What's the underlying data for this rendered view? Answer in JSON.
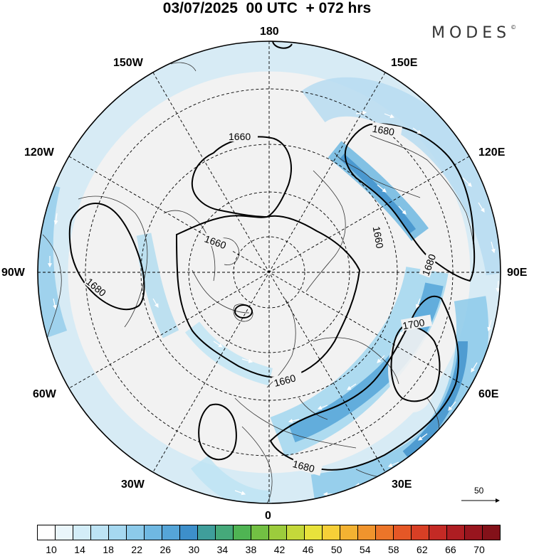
{
  "title": "03/07/2025  00 UTC  + 072 hrs",
  "brand": "MODES",
  "brand_mark": "©",
  "longitude_labels": {
    "lon_180": "180",
    "lon_150w": "150W",
    "lon_150e": "150E",
    "lon_120w": "120W",
    "lon_120e": "120E",
    "lon_90w": "90W",
    "lon_90e": "90E",
    "lon_60w": "60W",
    "lon_60e": "60E",
    "lon_30w": "30W",
    "lon_30e": "30E",
    "lon_0": "0"
  },
  "contour_labels": {
    "c1660_top": "1660",
    "c1680_ne": "1680",
    "c1660_center": "1660",
    "c1660_east": "1660",
    "c1680_east": "1680",
    "c1680_west": "1680",
    "c1700": "1700",
    "c1660_bottom": "1660",
    "c1680_bottom": "1680"
  },
  "reference_vector": "50",
  "colorbar": {
    "labels": [
      "10",
      "14",
      "18",
      "22",
      "26",
      "30",
      "34",
      "38",
      "42",
      "46",
      "50",
      "54",
      "58",
      "62",
      "66",
      "70"
    ],
    "colors": [
      "#ffffff",
      "#eaf6fb",
      "#d3edf8",
      "#bde3f4",
      "#a6d8f0",
      "#8ccaea",
      "#6fb8e2",
      "#55a5d8",
      "#3d8fcb",
      "#3f9e9b",
      "#45a97a",
      "#4fb453",
      "#72c043",
      "#9ccc3c",
      "#c4d83a",
      "#e8e23b",
      "#f6cf38",
      "#f3b232",
      "#f0942d",
      "#ec7529",
      "#e55726",
      "#d83f25",
      "#c42a25",
      "#ae1d22",
      "#98151e",
      "#831119"
    ]
  }
}
